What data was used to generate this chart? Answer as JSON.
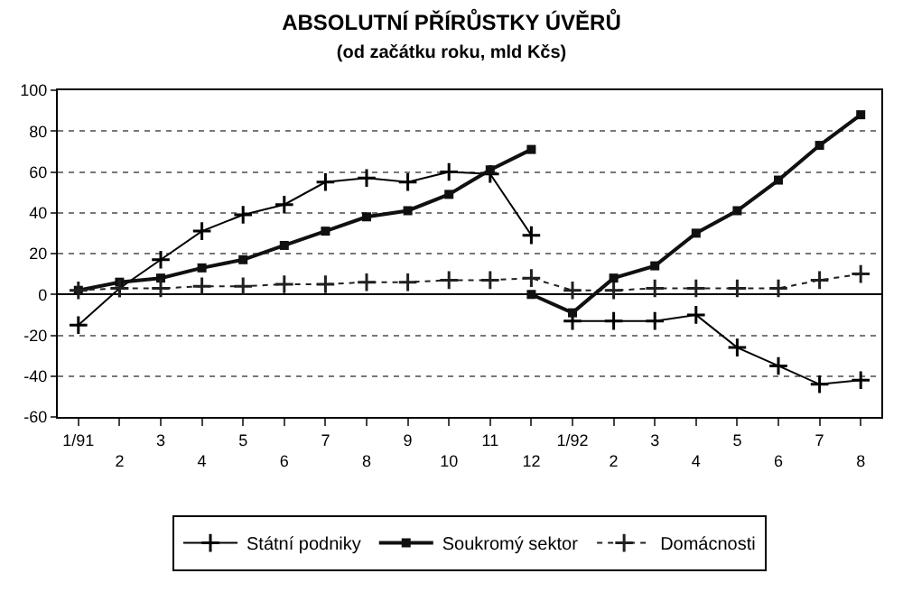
{
  "chart_data": {
    "type": "line",
    "title": "ABSOLUTNÍ PŘÍRŮSTKY ÚVĚRŮ",
    "subtitle": "(od začátku roku, mld Kčs)",
    "categories": [
      "1/91",
      "2",
      "3",
      "4",
      "5",
      "6",
      "7",
      "8",
      "9",
      "10",
      "11",
      "12",
      "1/92",
      "2",
      "3",
      "4",
      "5",
      "6",
      "7",
      "8"
    ],
    "series": [
      {
        "name": "Státní podniky",
        "color": "#000000",
        "marker": "cross",
        "line_style": "solid",
        "values": [
          -15,
          3,
          17,
          31,
          39,
          44,
          55,
          57,
          55,
          60,
          59,
          29,
          null,
          null,
          null,
          null,
          null,
          null,
          null,
          null
        ]
      },
      {
        "name": "Soukromý sektor",
        "color": "#101010",
        "marker": "square",
        "line_style": "solid",
        "values": [
          2,
          6,
          8,
          13,
          17,
          24,
          31,
          38,
          41,
          49,
          61,
          71,
          null,
          null,
          null,
          null,
          null,
          null,
          null,
          null
        ]
      },
      {
        "name": "Domácnosti",
        "color": "#202020",
        "marker": "cross",
        "line_style": "dotted",
        "values": [
          2,
          3,
          3,
          4,
          4,
          5,
          5,
          6,
          6,
          7,
          7,
          8,
          2,
          2,
          3,
          3,
          3,
          3,
          7,
          10
        ]
      },
      {
        "color": "#000000",
        "marker": "cross",
        "line_style": "solid",
        "values": [
          null,
          null,
          null,
          null,
          null,
          null,
          null,
          null,
          null,
          null,
          null,
          null,
          -13,
          -13,
          -13,
          -10,
          -26,
          -35,
          -44,
          -42
        ]
      },
      {
        "color": "#101010",
        "marker": "square",
        "line_style": "solid",
        "values": [
          null,
          null,
          null,
          null,
          null,
          null,
          null,
          null,
          null,
          null,
          null,
          0,
          -9,
          8,
          14,
          30,
          41,
          56,
          73,
          88
        ]
      }
    ],
    "ylim": [
      -60,
      100
    ],
    "yticks": [
      -60,
      -40,
      -20,
      0,
      20,
      40,
      60,
      80,
      100
    ],
    "grid": "y",
    "legend": "bottom"
  }
}
